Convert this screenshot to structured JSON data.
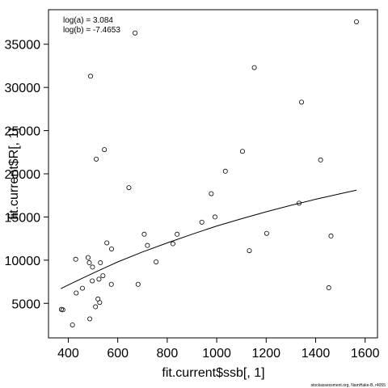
{
  "chart_data": {
    "type": "scatter",
    "xlabel": "fit.current$ssb[, 1]",
    "ylabel": "fit.current$R[, 1]",
    "xlim": [
      320,
      1650
    ],
    "ylim": [
      1000,
      39000
    ],
    "x_ticks": [
      400,
      600,
      800,
      1000,
      1200,
      1400,
      1600
    ],
    "y_ticks": [
      5000,
      10000,
      15000,
      20000,
      25000,
      30000,
      35000
    ],
    "grid": false,
    "legend": {
      "placement": "top-left",
      "lines": [
        "log(a) = 3.084",
        "log(b) = -7.4653"
      ]
    },
    "credit": "stockassessment.org, NamHake-B, r4055",
    "series": [
      {
        "marker": "open-circle",
        "x": [
          372,
          378,
          417,
          430,
          432,
          457,
          480,
          485,
          487,
          490,
          497,
          498,
          510,
          513,
          520,
          524,
          527,
          530,
          540,
          546,
          556,
          574,
          575,
          645,
          670,
          682,
          707,
          720,
          755,
          823,
          840,
          940,
          978,
          993,
          1035,
          1104,
          1132,
          1152,
          1202,
          1333,
          1343,
          1420,
          1453,
          1462,
          1565
        ],
        "y": [
          4300,
          4250,
          2500,
          10100,
          6200,
          6750,
          10300,
          9700,
          3200,
          31300,
          7600,
          9200,
          4600,
          21700,
          5500,
          7800,
          5100,
          9700,
          8200,
          22800,
          12000,
          7200,
          11300,
          18400,
          36300,
          7200,
          13000,
          11700,
          9800,
          11900,
          13000,
          14400,
          17700,
          15000,
          20300,
          22600,
          11100,
          32300,
          13100,
          16600,
          28300,
          21600,
          6800,
          12800,
          37600
        ]
      },
      {
        "name": "fit",
        "marker": "line",
        "x": [
          370,
          420,
          500,
          600,
          700,
          800,
          900,
          1000,
          1100,
          1200,
          1300,
          1400,
          1500,
          1565
        ],
        "y": [
          6700,
          7400,
          8500,
          9800,
          10950,
          12000,
          13000,
          13950,
          14800,
          15600,
          16350,
          17050,
          17700,
          18100
        ]
      }
    ]
  }
}
